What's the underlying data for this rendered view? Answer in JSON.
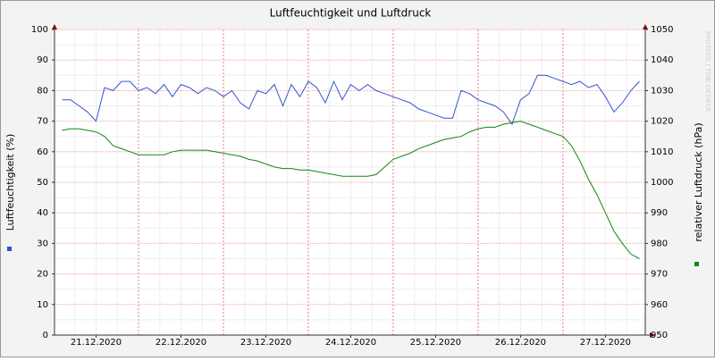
{
  "chart_data": {
    "type": "line",
    "title": "Luftfeuchtigkeit und Luftdruck",
    "y_label": "Luftfeuchtigkeit (%)",
    "y2_label": "relativer Luftdruck (hPa)",
    "watermark": "RRDTOOL / TOBI OETIKER",
    "x": [
      21.1,
      21.2,
      21.3,
      21.4,
      21.5,
      21.6,
      21.7,
      21.8,
      21.9,
      22.0,
      22.1,
      22.2,
      22.3,
      22.4,
      22.5,
      22.6,
      22.7,
      22.8,
      22.9,
      23.0,
      23.1,
      23.2,
      23.3,
      23.4,
      23.5,
      23.6,
      23.7,
      23.8,
      23.9,
      24.0,
      24.1,
      24.2,
      24.3,
      24.4,
      24.5,
      24.6,
      24.7,
      24.8,
      24.9,
      25.0,
      25.1,
      25.2,
      25.3,
      25.4,
      25.5,
      25.6,
      25.7,
      25.8,
      25.9,
      26.0,
      26.1,
      26.2,
      26.3,
      26.4,
      26.5,
      26.6,
      26.7,
      26.8,
      26.9,
      27.0,
      27.1,
      27.2,
      27.3,
      27.4,
      27.5,
      27.6,
      27.7,
      27.8,
      27.9
    ],
    "xlim": [
      21.01,
      27.97
    ],
    "xticks": [
      {
        "value": 21.5,
        "label": "21.12.2020"
      },
      {
        "value": 22.5,
        "label": "22.12.2020"
      },
      {
        "value": 23.5,
        "label": "23.12.2020"
      },
      {
        "value": 24.5,
        "label": "24.12.2020"
      },
      {
        "value": 25.5,
        "label": "25.12.2020"
      },
      {
        "value": 26.5,
        "label": "26.12.2020"
      },
      {
        "value": 27.5,
        "label": "27.12.2020"
      }
    ],
    "ylim": [
      0,
      100
    ],
    "yticks": [
      0,
      10,
      20,
      30,
      40,
      50,
      60,
      70,
      80,
      90,
      100
    ],
    "y2lim": [
      950,
      1050
    ],
    "y2ticks": [
      950,
      960,
      970,
      980,
      990,
      1000,
      1010,
      1020,
      1030,
      1040,
      1050
    ],
    "grid": true,
    "series": [
      {
        "color": "#3355cc",
        "values": [
          77,
          77,
          75,
          73,
          70,
          81,
          80,
          83,
          83,
          80,
          81,
          79,
          82,
          78,
          82,
          81,
          79,
          81,
          80,
          78,
          80,
          76,
          74,
          80,
          79,
          82,
          75,
          82,
          78,
          83,
          81,
          76,
          83,
          77,
          82,
          80,
          82,
          80,
          79,
          78,
          77,
          76,
          74,
          73,
          72,
          71,
          71,
          80,
          79,
          77,
          76,
          75,
          73,
          69,
          77,
          79,
          85,
          85,
          84,
          83,
          82,
          83,
          81,
          82,
          78,
          73,
          76,
          80,
          83
        ]
      },
      {
        "color": "#118811",
        "axis": "y2",
        "values": [
          1017,
          1017.5,
          1017.5,
          1017,
          1016.5,
          1015,
          1012,
          1011,
          1010,
          1009,
          1009,
          1009,
          1009,
          1010,
          1010.5,
          1010.5,
          1010.5,
          1010.5,
          1010,
          1009.5,
          1009,
          1008.5,
          1007.5,
          1007,
          1006,
          1005,
          1004.5,
          1004.5,
          1004,
          1004,
          1003.5,
          1003,
          1002.5,
          1002,
          1002,
          1002,
          1002,
          1002.5,
          1005,
          1007.5,
          1008.5,
          1009.5,
          1011,
          1012,
          1013,
          1014,
          1014.5,
          1015,
          1016.5,
          1017.5,
          1018,
          1018,
          1019,
          1019.5,
          1020,
          1019,
          1018,
          1017,
          1016,
          1015,
          1012,
          1007,
          1001,
          996,
          990,
          984,
          980,
          976.5,
          975
        ]
      }
    ]
  }
}
